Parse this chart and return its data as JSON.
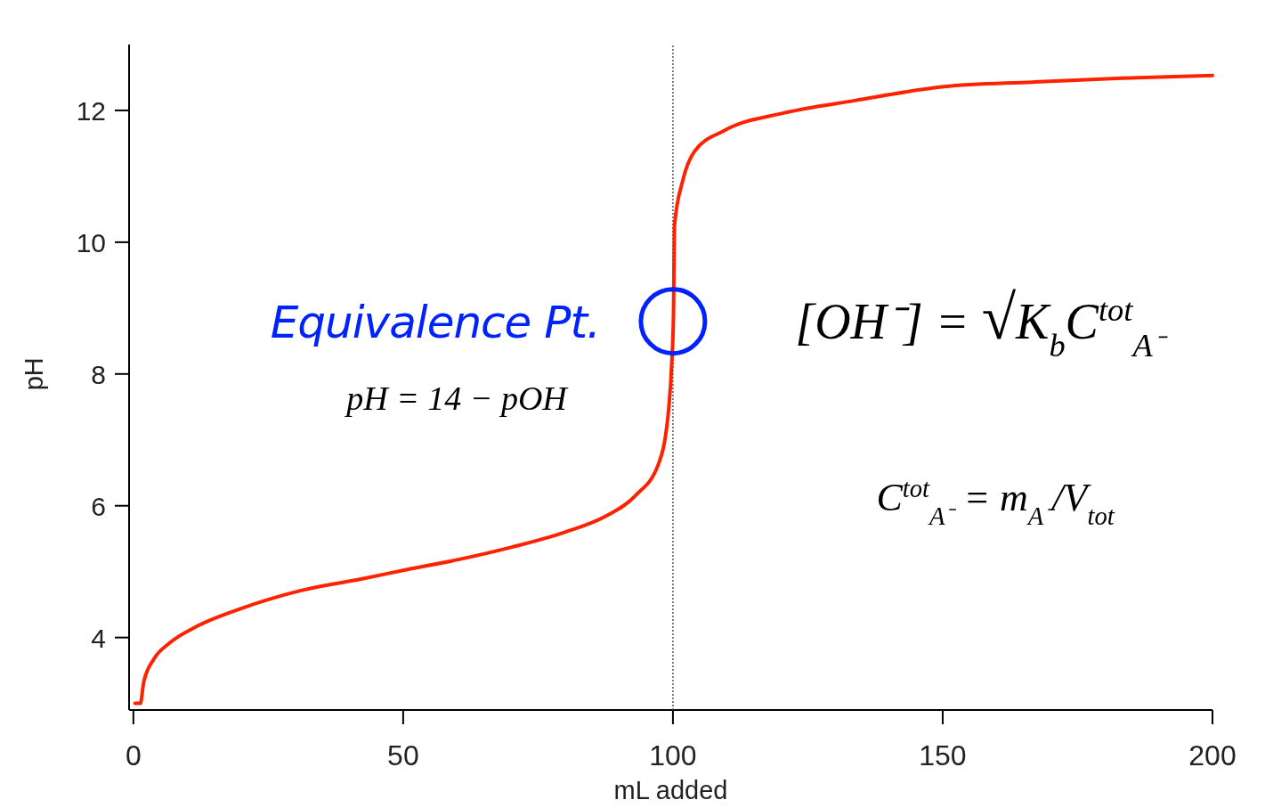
{
  "chart_data": {
    "type": "line",
    "xlabel": "mL added",
    "ylabel": "pH",
    "xlim": [
      -0.8,
      200
    ],
    "ylim": [
      2.9,
      13
    ],
    "xticks": [
      0,
      50,
      100,
      150,
      200
    ],
    "yticks": [
      4,
      6,
      8,
      10,
      12
    ],
    "x": [
      0.3,
      1.3,
      1.9,
      3.85,
      6.6,
      12,
      20.3,
      31.4,
      42.4,
      50.6,
      60,
      70,
      80,
      87.5,
      93,
      97.4,
      99.3,
      99.8,
      100.1,
      100.3,
      101.8,
      104,
      109.4,
      120.5,
      133.7,
      150.2,
      166.7,
      183.2,
      200
    ],
    "series": [
      {
        "color": "#ff2200",
        "values": [
          3.0,
          3.0,
          3.32,
          3.68,
          3.91,
          4.18,
          4.45,
          4.72,
          4.89,
          5.03,
          5.18,
          5.37,
          5.6,
          5.84,
          6.15,
          6.65,
          7.55,
          8.2,
          8.9,
          10.26,
          10.93,
          11.38,
          11.69,
          11.96,
          12.15,
          12.36,
          12.43,
          12.49,
          12.53
        ]
      }
    ],
    "ref_lines": [
      {
        "axis": "x",
        "value": 100,
        "color": "#555555",
        "line_style": "dotted"
      }
    ],
    "annotations": [
      {
        "text": "Equivalence Pt.",
        "x": 100,
        "y": 8.8
      },
      "pH = 14 − pOH",
      "[OH⁻] = √K$_{b}$C$^{tot}$$_{A⁻}$",
      "C$^{tot}$$_{A⁻}$ = m$_{A⁻}$/V$_{tot}$"
    ]
  }
}
